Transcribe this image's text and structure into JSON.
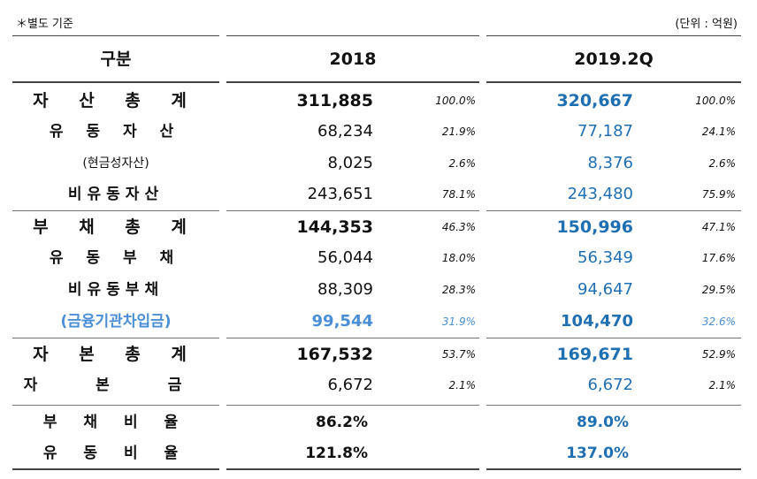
{
  "note_left": "＊별도 기준",
  "note_right": "(단위 : 억원)",
  "header": {
    "col0": "구분",
    "col1": "2018",
    "col2": "2019.2Q"
  },
  "rows": [
    {
      "label": "자 산 총 계",
      "v2018": "311,885",
      "p2018": "100.0%",
      "v2019": "320,667",
      "p2019": "100.0%"
    },
    {
      "label": "유 동 자 산",
      "v2018": "68,234",
      "p2018": "21.9%",
      "v2019": "77,187",
      "p2019": "24.1%"
    },
    {
      "label": "(현금성자산)",
      "v2018": "8,025",
      "p2018": "2.6%",
      "v2019": "8,376",
      "p2019": "2.6%"
    },
    {
      "label": "비유동자산",
      "v2018": "243,651",
      "p2018": "78.1%",
      "v2019": "243,480",
      "p2019": "75.9%"
    },
    {
      "label": "부 채 총 계",
      "v2018": "144,353",
      "p2018": "46.3%",
      "v2019": "150,996",
      "p2019": "47.1%"
    },
    {
      "label": "유 동 부 채",
      "v2018": "56,044",
      "p2018": "18.0%",
      "v2019": "56,349",
      "p2019": "17.6%"
    },
    {
      "label": "비유동부채",
      "v2018": "88,309",
      "p2018": "28.3%",
      "v2019": "94,647",
      "p2019": "29.5%"
    },
    {
      "label": "(금융기관차입금)",
      "v2018": "99,544",
      "p2018": "31.9%",
      "v2019": "104,470",
      "p2019": "32.6%"
    },
    {
      "label": "자 본 총 계",
      "v2018": "167,532",
      "p2018": "53.7%",
      "v2019": "169,671",
      "p2019": "52.9%"
    },
    {
      "label": "자 본 금",
      "v2018": "6,672",
      "p2018": "2.1%",
      "v2019": "6,672",
      "p2019": "2.1%"
    },
    {
      "label": "부 채 비 율",
      "v2018": "86.2%",
      "v2019": "89.0%"
    },
    {
      "label": "유 동 비 율",
      "v2018": "121.8%",
      "v2019": "137.0%"
    }
  ],
  "colors": {
    "accent_blue": "#1f6fb3",
    "light_blue": "#4a8fd6",
    "rule": "#444444"
  }
}
